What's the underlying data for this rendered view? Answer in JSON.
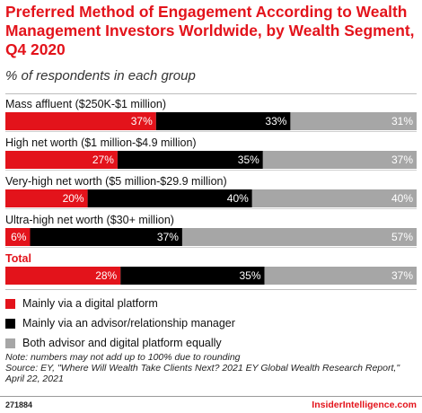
{
  "header": {
    "title": "Preferred Method of Engagement According to Wealth Management Investors Worldwide, by Wealth Segment, Q4 2020",
    "subtitle": "% of respondents in each group"
  },
  "colors": {
    "red": "#e3131b",
    "black": "#000000",
    "gray": "#a6a6a6"
  },
  "chart_data": {
    "type": "bar",
    "orientation": "horizontal",
    "stacked": true,
    "categories": [
      "Mass affluent ($250K-$1 million)",
      "High net worth ($1 million-$4.9 million)",
      "Very-high net worth ($5 million-$29.9 million)",
      "Ultra-high net worth ($30+ million)",
      "Total"
    ],
    "series": [
      {
        "name": "Mainly via a digital platform",
        "color": "#e3131b",
        "values": [
          37,
          27,
          20,
          6,
          28
        ]
      },
      {
        "name": "Mainly via an advisor/relationship manager",
        "color": "#000000",
        "values": [
          33,
          35,
          40,
          37,
          35
        ]
      },
      {
        "name": "Both advisor and digital platform equally",
        "color": "#a6a6a6",
        "values": [
          31,
          37,
          40,
          57,
          37
        ]
      }
    ],
    "legend_position": "bottom-left"
  },
  "legend": [
    {
      "label": "Mainly via a digital platform",
      "color": "#e3131b"
    },
    {
      "label": "Mainly via an advisor/relationship manager",
      "color": "#000000"
    },
    {
      "label": "Both advisor and digital platform equally",
      "color": "#a6a6a6"
    }
  ],
  "footer": {
    "note": "Note: numbers may not add up to 100% due to rounding",
    "source": "Source: EY, \"Where Will Wealth Take Clients Next? 2021 EY Global Wealth Research Report,\" April 22, 2021",
    "id": "271884",
    "brand": "InsiderIntelligence.com"
  }
}
